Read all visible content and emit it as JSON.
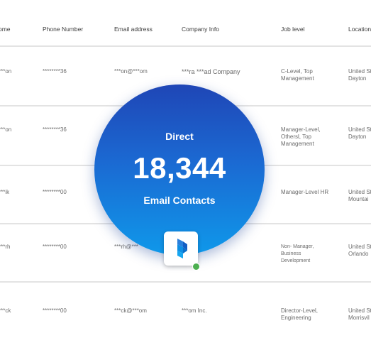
{
  "headers": {
    "name": "ome",
    "phone": "Phone Number",
    "email": "Email address",
    "company": "Company Info",
    "job": "Job level",
    "location": "Location"
  },
  "rows": [
    {
      "name": "***on",
      "phone": "********36",
      "email": "***on@***om",
      "company": "***ra ***ad Company",
      "job": "C-Level, Top Management",
      "location": "United St Dayton"
    },
    {
      "name": "***on",
      "phone": "********36",
      "email": "",
      "company": "",
      "job": "Manager-Level, Othersl, Top Management",
      "location": "United St Dayton"
    },
    {
      "name": "***ik",
      "phone": "********00",
      "email": "",
      "company": "",
      "job": "Manager-Level HR",
      "location": "United St Mountai"
    },
    {
      "name": "***rh",
      "phone": "********00",
      "email": "***rh@***",
      "company": "",
      "job": "Non- Manager, Business Development",
      "location": "United St Orlando"
    },
    {
      "name": "***ck",
      "phone": "********00",
      "email": "***ck@***om",
      "company": "***om Inc.",
      "job": "Director-Level, Engineering",
      "location": "United St Morrisvil"
    }
  ],
  "badge": {
    "top": "Direct",
    "count": "18,344",
    "bottom": "Email Contacts"
  },
  "colors": {
    "badge_top": "#1f46b6",
    "badge_bottom": "#0f98ea",
    "status": "#4caf50"
  },
  "icons": {
    "logo": "brand-logo-icon",
    "status": "online-status-dot"
  }
}
